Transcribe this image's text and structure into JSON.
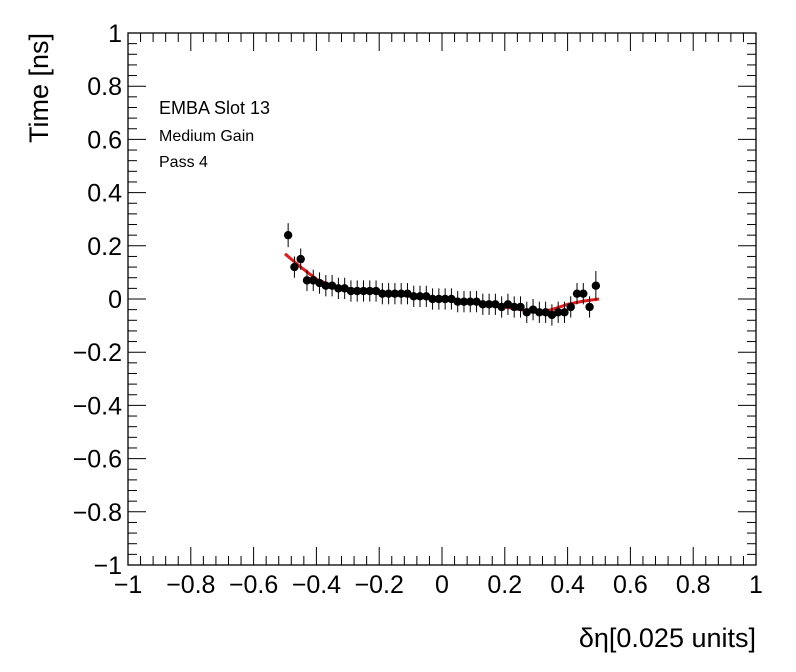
{
  "chart_data": {
    "type": "scatter",
    "xlabel": "δη[0.025 units]",
    "ylabel": "Time [ns]",
    "xlim": [
      -1,
      1
    ],
    "ylim": [
      -1,
      1
    ],
    "x_ticks": [
      -1,
      -0.8,
      -0.6,
      -0.4,
      -0.2,
      0,
      0.2,
      0.4,
      0.6,
      0.8,
      1
    ],
    "y_ticks": [
      -1,
      -0.8,
      -0.6,
      -0.4,
      -0.2,
      0,
      0.2,
      0.4,
      0.6,
      0.8,
      1
    ],
    "x_tick_labels": [
      "−1",
      "−0.8",
      "−0.6",
      "−0.4",
      "−0.2",
      "0",
      "0.2",
      "0.4",
      "0.6",
      "0.8",
      "1"
    ],
    "y_tick_labels": [
      "−1",
      "−0.8",
      "−0.6",
      "−0.4",
      "−0.2",
      "0",
      "0.2",
      "0.4",
      "0.6",
      "0.8",
      "1"
    ],
    "grid": false,
    "annotations": [
      "EMBA Slot 13",
      "Medium Gain",
      "Pass 4"
    ],
    "colors": {
      "points": "#000000",
      "fit": "#e41a1c"
    },
    "series": [
      {
        "kind": "points_with_error_bars",
        "x": [
          -0.49,
          -0.47,
          -0.45,
          -0.43,
          -0.41,
          -0.39,
          -0.37,
          -0.35,
          -0.33,
          -0.31,
          -0.29,
          -0.27,
          -0.25,
          -0.23,
          -0.21,
          -0.19,
          -0.17,
          -0.15,
          -0.13,
          -0.11,
          -0.09,
          -0.07,
          -0.05,
          -0.03,
          -0.01,
          0.01,
          0.03,
          0.05,
          0.07,
          0.09,
          0.11,
          0.13,
          0.15,
          0.17,
          0.19,
          0.21,
          0.23,
          0.25,
          0.27,
          0.29,
          0.31,
          0.33,
          0.35,
          0.37,
          0.39,
          0.41,
          0.43,
          0.45,
          0.47,
          0.49
        ],
        "y": [
          0.24,
          0.12,
          0.15,
          0.07,
          0.07,
          0.06,
          0.05,
          0.05,
          0.04,
          0.04,
          0.03,
          0.03,
          0.03,
          0.03,
          0.03,
          0.02,
          0.02,
          0.02,
          0.02,
          0.02,
          0.01,
          0.01,
          0.01,
          0.0,
          0.0,
          0.0,
          0.0,
          -0.01,
          -0.01,
          -0.01,
          -0.01,
          -0.02,
          -0.02,
          -0.02,
          -0.03,
          -0.02,
          -0.03,
          -0.03,
          -0.05,
          -0.04,
          -0.05,
          -0.05,
          -0.06,
          -0.05,
          -0.05,
          -0.03,
          0.02,
          0.02,
          -0.03,
          0.05
        ],
        "err": [
          0.045,
          0.04,
          0.04,
          0.04,
          0.04,
          0.04,
          0.04,
          0.04,
          0.04,
          0.04,
          0.04,
          0.04,
          0.04,
          0.04,
          0.04,
          0.04,
          0.04,
          0.04,
          0.04,
          0.04,
          0.04,
          0.04,
          0.04,
          0.04,
          0.04,
          0.04,
          0.04,
          0.04,
          0.04,
          0.04,
          0.04,
          0.04,
          0.04,
          0.04,
          0.04,
          0.04,
          0.04,
          0.04,
          0.04,
          0.04,
          0.04,
          0.04,
          0.04,
          0.04,
          0.04,
          0.04,
          0.04,
          0.04,
          0.04,
          0.055
        ]
      },
      {
        "kind": "fit_curve",
        "x": [
          -0.5,
          -0.45,
          -0.4,
          -0.35,
          -0.3,
          -0.25,
          -0.2,
          -0.15,
          -0.1,
          -0.05,
          0.0,
          0.05,
          0.1,
          0.15,
          0.2,
          0.25,
          0.3,
          0.35,
          0.4,
          0.45,
          0.5
        ],
        "y": [
          0.17,
          0.12,
          0.075,
          0.05,
          0.038,
          0.03,
          0.023,
          0.017,
          0.01,
          0.004,
          -0.002,
          -0.008,
          -0.015,
          -0.022,
          -0.03,
          -0.04,
          -0.05,
          -0.04,
          -0.02,
          -0.008,
          0.0
        ]
      }
    ]
  }
}
